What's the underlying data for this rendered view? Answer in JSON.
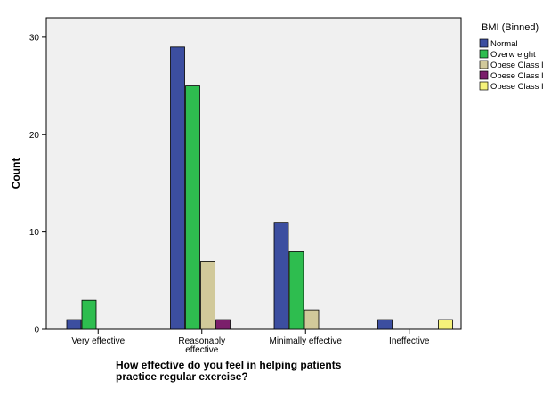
{
  "chart_data": {
    "type": "bar",
    "xlabel": "How effective do you feel in helping patients practice regular exercise?",
    "xlabel_lines": [
      "How effective do you feel in helping patients",
      "practice regular exercise?"
    ],
    "ylabel": "Count",
    "ylim": [
      0,
      32
    ],
    "yticks": [
      0,
      10,
      20,
      30
    ],
    "grid": false,
    "legend_position": "right",
    "legend_title": "BMI (Binned)",
    "categories": [
      "Very effective",
      "Reasonably effective",
      "Minimally effective",
      "Ineffective"
    ],
    "category_label_lines": [
      [
        "Very effective"
      ],
      [
        "Reasonably",
        "effective"
      ],
      [
        "Minimally effective"
      ],
      [
        "Ineffective"
      ]
    ],
    "series": [
      {
        "name": "Normal",
        "color": "#3c4ea0",
        "values": [
          1,
          29,
          11,
          1
        ]
      },
      {
        "name": "Overw eight",
        "color": "#2ebd4f",
        "values": [
          3,
          25,
          8,
          0
        ]
      },
      {
        "name": "Obese Class I",
        "color": "#d1c99a",
        "values": [
          0,
          7,
          2,
          0
        ]
      },
      {
        "name": "Obese Class I",
        "color": "#7b1f6b",
        "values": [
          0,
          1,
          0,
          0
        ]
      },
      {
        "name": "Obese Class I",
        "color": "#f5f27a",
        "values": [
          0,
          0,
          0,
          1
        ]
      }
    ],
    "plot_background": "#f0f0f0"
  }
}
